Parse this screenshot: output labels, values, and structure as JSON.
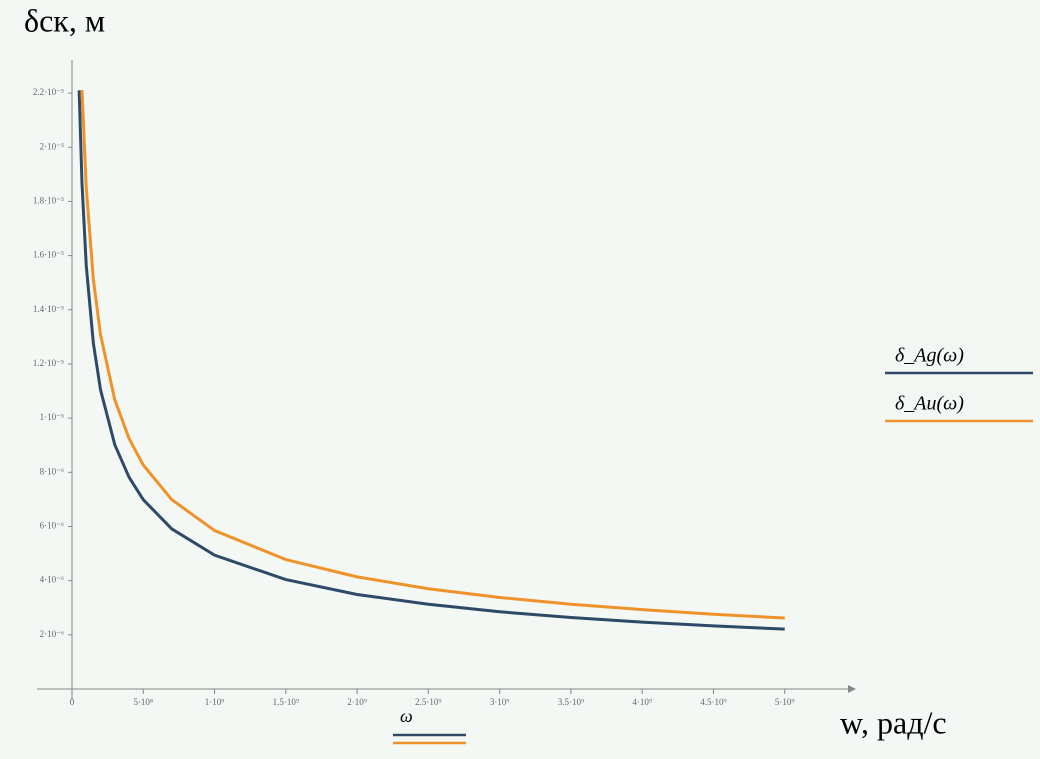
{
  "chart_data": {
    "type": "line",
    "y_label": "δск, м",
    "x_label": "w, рад/с",
    "x_variable": "ω",
    "x": [
      50000000,
      70000000,
      100000000,
      150000000,
      200000000,
      300000000,
      400000000,
      500000000,
      700000000,
      1000000000,
      1500000000,
      2000000000,
      2500000000,
      3000000000,
      3500000000,
      4000000000,
      4500000000,
      5000000000
    ],
    "series": [
      {
        "name": "δ_Ag(ω)",
        "color": "#2e4a68",
        "values": [
          2.21e-05,
          1.868e-05,
          1.563e-05,
          1.276e-05,
          1.105e-05,
          9.02e-06,
          7.82e-06,
          6.99e-06,
          5.91e-06,
          4.94e-06,
          4.04e-06,
          3.49e-06,
          3.13e-06,
          2.85e-06,
          2.64e-06,
          2.47e-06,
          2.33e-06,
          2.21e-06
        ]
      },
      {
        "name": "δ_Au(ω)",
        "color": "#f0922a",
        "values": [
          null,
          2.211e-05,
          1.85e-05,
          1.511e-05,
          1.308e-05,
          1.068e-05,
          9.25e-06,
          8.27e-06,
          6.99e-06,
          5.85e-06,
          4.78e-06,
          4.14e-06,
          3.7e-06,
          3.38e-06,
          3.13e-06,
          2.93e-06,
          2.76e-06,
          2.62e-06
        ]
      }
    ],
    "xlim": [
      0,
      5500000000
    ],
    "ylim": [
      0,
      2.3e-05
    ],
    "xticks": [
      0,
      {
        "value": 500000000,
        "label": "5·10⁸"
      },
      {
        "value": 1000000000,
        "label": "1·10⁹"
      },
      {
        "value": 1500000000,
        "label": "1.5·10⁹"
      },
      {
        "value": 2000000000,
        "label": "2·10⁹"
      },
      {
        "value": 2500000000,
        "label": "2.5·10⁹"
      },
      {
        "value": 3000000000,
        "label": "3·10⁹"
      },
      {
        "value": 3500000000,
        "label": "3.5·10⁹"
      },
      {
        "value": 4000000000,
        "label": "4·10⁹"
      },
      {
        "value": 4500000000,
        "label": "4.5·10⁹"
      },
      {
        "value": 5000000000,
        "label": "5·10⁹"
      }
    ],
    "yticks": [
      {
        "value": 2e-06,
        "label": "2·10⁻⁶"
      },
      {
        "value": 4e-06,
        "label": "4·10⁻⁶"
      },
      {
        "value": 6e-06,
        "label": "6·10⁻⁶"
      },
      {
        "value": 8e-06,
        "label": "8·10⁻⁶"
      },
      {
        "value": 1e-05,
        "label": "1·10⁻⁵"
      },
      {
        "value": 1.2e-05,
        "label": "1.2·10⁻⁵"
      },
      {
        "value": 1.4e-05,
        "label": "1.4·10⁻⁵"
      },
      {
        "value": 1.6e-05,
        "label": "1.6·10⁻⁵"
      },
      {
        "value": 1.8e-05,
        "label": "1.8·10⁻⁵"
      },
      {
        "value": 2e-05,
        "label": "2·10⁻⁵"
      },
      {
        "value": 2.2e-05,
        "label": "2.2·10⁻⁵"
      }
    ],
    "grid": false
  }
}
